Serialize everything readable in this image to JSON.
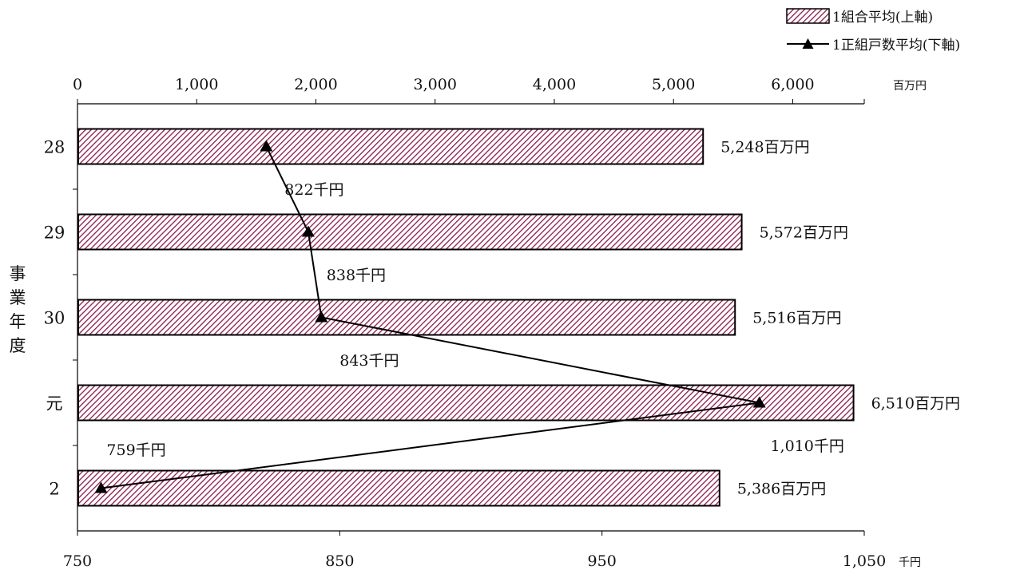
{
  "chart_data": {
    "type": "bar",
    "orientation": "horizontal",
    "categories": [
      "28",
      "29",
      "30",
      "元",
      "2"
    ],
    "ylabel": "事業年度",
    "series": [
      {
        "name": "1組合平均(上軸)",
        "type": "bar",
        "axis": "top",
        "values": [
          5248,
          5572,
          5516,
          6510,
          5386
        ],
        "labels": [
          "5,248百万円",
          "5,572百万円",
          "5,516百万円",
          "6,510百万円",
          "5,386百万円"
        ],
        "fill": "#8b1a4a",
        "pattern": "diagonal-hatch"
      },
      {
        "name": "1正組戸数平均(下軸)",
        "type": "line",
        "axis": "bottom",
        "marker": "triangle",
        "values": [
          822,
          838,
          843,
          1010,
          759
        ],
        "labels": [
          "822千円",
          "838千円",
          "843千円",
          "1,010千円",
          "759千円"
        ],
        "color": "#000000"
      }
    ],
    "top_axis": {
      "ticks": [
        "0",
        "1,000",
        "2,000",
        "3,000",
        "4,000",
        "5,000",
        "6,000"
      ],
      "tick_values": [
        0,
        1000,
        2000,
        3000,
        4000,
        5000,
        6000
      ],
      "range": [
        0,
        6600
      ],
      "unit": "百万円"
    },
    "bottom_axis": {
      "ticks": [
        "750",
        "850",
        "950",
        "1,050"
      ],
      "tick_values": [
        750,
        850,
        950,
        1050
      ],
      "range": [
        750,
        1050
      ],
      "unit": "千円"
    },
    "legend_position": "top-right",
    "grid": false
  }
}
